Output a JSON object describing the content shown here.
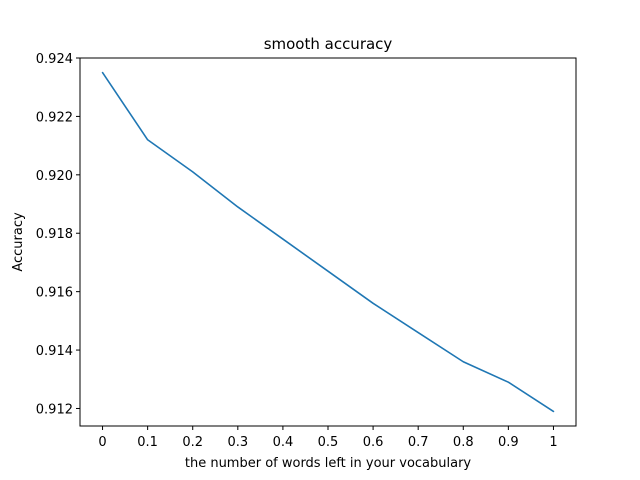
{
  "chart_data": {
    "type": "line",
    "title": "smooth accuracy",
    "xlabel": "the number of words left in your vocabulary",
    "ylabel": "Accuracy",
    "x": [
      0,
      0.1,
      0.2,
      0.3,
      0.4,
      0.5,
      0.6,
      0.7,
      0.8,
      0.9,
      1
    ],
    "x_tick_labels": [
      "0",
      "0.1",
      "0.2",
      "0.3",
      "0.4",
      "0.5",
      "0.6",
      "0.7",
      "0.8",
      "0.9",
      "1"
    ],
    "y_ticks": [
      0.912,
      0.914,
      0.916,
      0.918,
      0.92,
      0.922,
      0.924
    ],
    "y_tick_labels": [
      "0.912",
      "0.914",
      "0.916",
      "0.918",
      "0.920",
      "0.922",
      "0.924"
    ],
    "series": [
      {
        "values": [
          0.9235,
          0.9212,
          0.9201,
          0.9189,
          0.9178,
          0.9167,
          0.9156,
          0.9146,
          0.9136,
          0.9129,
          0.9119
        ],
        "color": "#1f77b4"
      }
    ],
    "xlim": [
      -0.05,
      1.05
    ],
    "ylim": [
      0.9114,
      0.924
    ],
    "grid": false,
    "legend": "none"
  }
}
